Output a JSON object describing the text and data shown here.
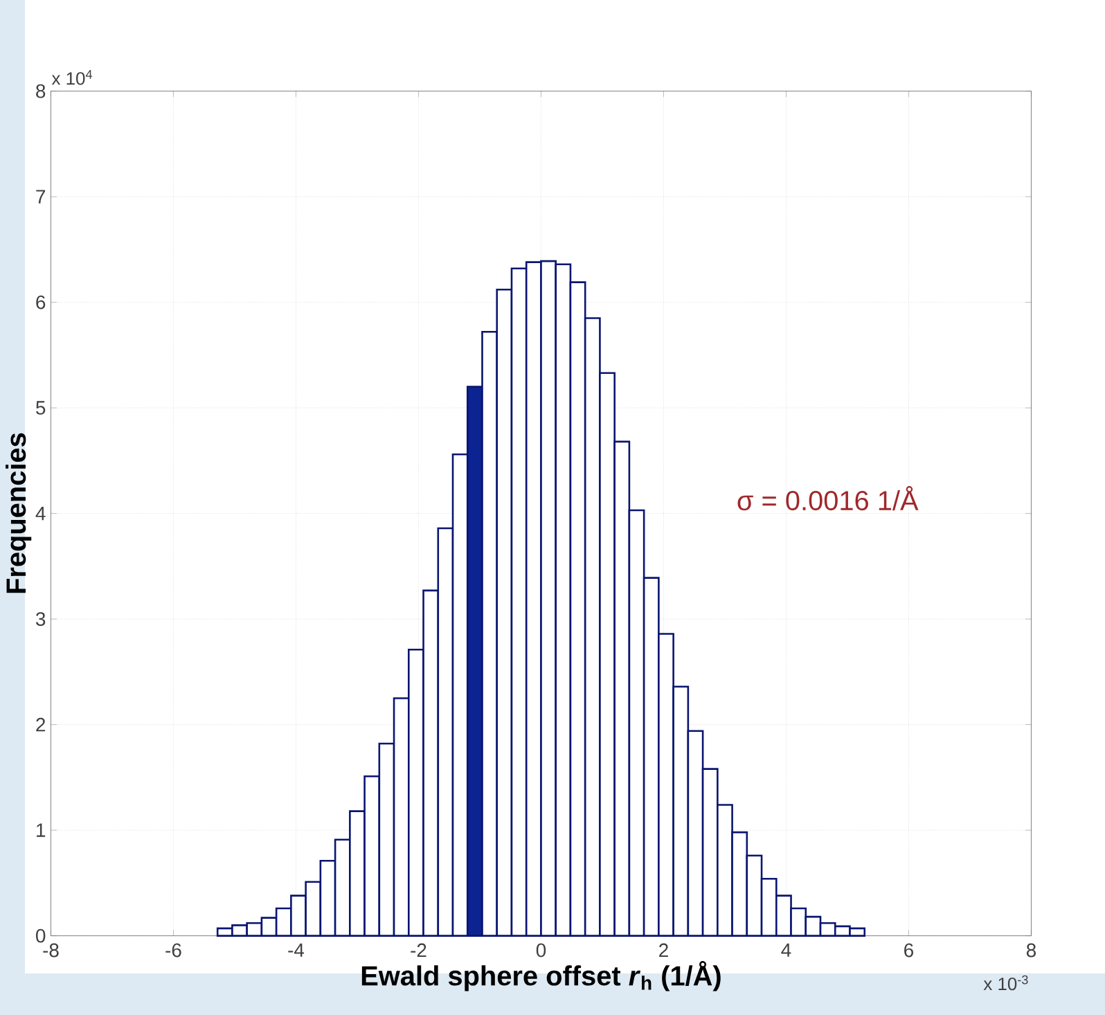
{
  "chart_data": {
    "type": "histogram",
    "xlabel": "Ewald sphere offset *r*$_{h}$  (1/Å)",
    "ylabel": "Frequencies",
    "annotations": [
      "x 10$^{4}$",
      "x 10$^{-3}$",
      "σ = 0.0016 1/Å"
    ],
    "bins": [
      -5.28,
      -5.04,
      -4.8,
      -4.56,
      -4.32,
      -4.08,
      -3.84,
      -3.6,
      -3.36,
      -3.12,
      -2.88,
      -2.64,
      -2.4,
      -2.16,
      -1.92,
      -1.68,
      -1.44,
      -1.2,
      -0.96,
      -0.72,
      -0.48,
      -0.24,
      0,
      0.24,
      0.48,
      0.72,
      0.96,
      1.2,
      1.44,
      1.68,
      1.92,
      2.16,
      2.4,
      2.64,
      2.88,
      3.12,
      3.36,
      3.6,
      3.84,
      4.08,
      4.32,
      4.56,
      4.8,
      5.04,
      5.28
    ],
    "values": [
      0.07,
      0.1,
      0.12,
      0.17,
      0.26,
      0.38,
      0.51,
      0.71,
      0.91,
      1.18,
      1.51,
      1.82,
      2.25,
      2.71,
      3.27,
      3.86,
      4.56,
      5.2,
      5.72,
      6.12,
      6.32,
      6.38,
      6.39,
      6.36,
      6.19,
      5.85,
      5.33,
      4.68,
      4.03,
      3.39,
      2.86,
      2.36,
      1.94,
      1.58,
      1.24,
      0.98,
      0.76,
      0.54,
      0.38,
      0.26,
      0.18,
      0.12,
      0.09,
      0.07
    ],
    "colors": [
      "#ffffff",
      "#ffffff",
      "#ffffff",
      "#ffffff",
      "#ffffff",
      "#ffffff",
      "#ffffff",
      "#ffffff",
      "#ffffff",
      "#ffffff",
      "#ffffff",
      "#ffffff",
      "#ffffff",
      "#ffffff",
      "#ffffff",
      "#ffffff",
      "#ffffff",
      "#0b2491",
      "#ffffff",
      "#ffffff",
      "#ffffff",
      "#ffffff",
      "#ffffff",
      "#ffffff",
      "#ffffff",
      "#ffffff",
      "#ffffff",
      "#ffffff",
      "#ffffff",
      "#ffffff",
      "#ffffff",
      "#ffffff",
      "#ffffff",
      "#ffffff",
      "#ffffff",
      "#ffffff",
      "#ffffff",
      "#ffffff",
      "#ffffff",
      "#ffffff",
      "#ffffff",
      "#ffffff",
      "#ffffff",
      "#ffffff"
    ],
    "xlim": [
      -8,
      8
    ],
    "ylim": [
      0,
      8
    ],
    "xticks": [
      -8,
      -6,
      -4,
      -2,
      0,
      2,
      4,
      6,
      8
    ],
    "yticks": [
      0,
      1,
      2,
      3,
      4,
      5,
      6,
      7,
      8
    ],
    "grid": true
  }
}
